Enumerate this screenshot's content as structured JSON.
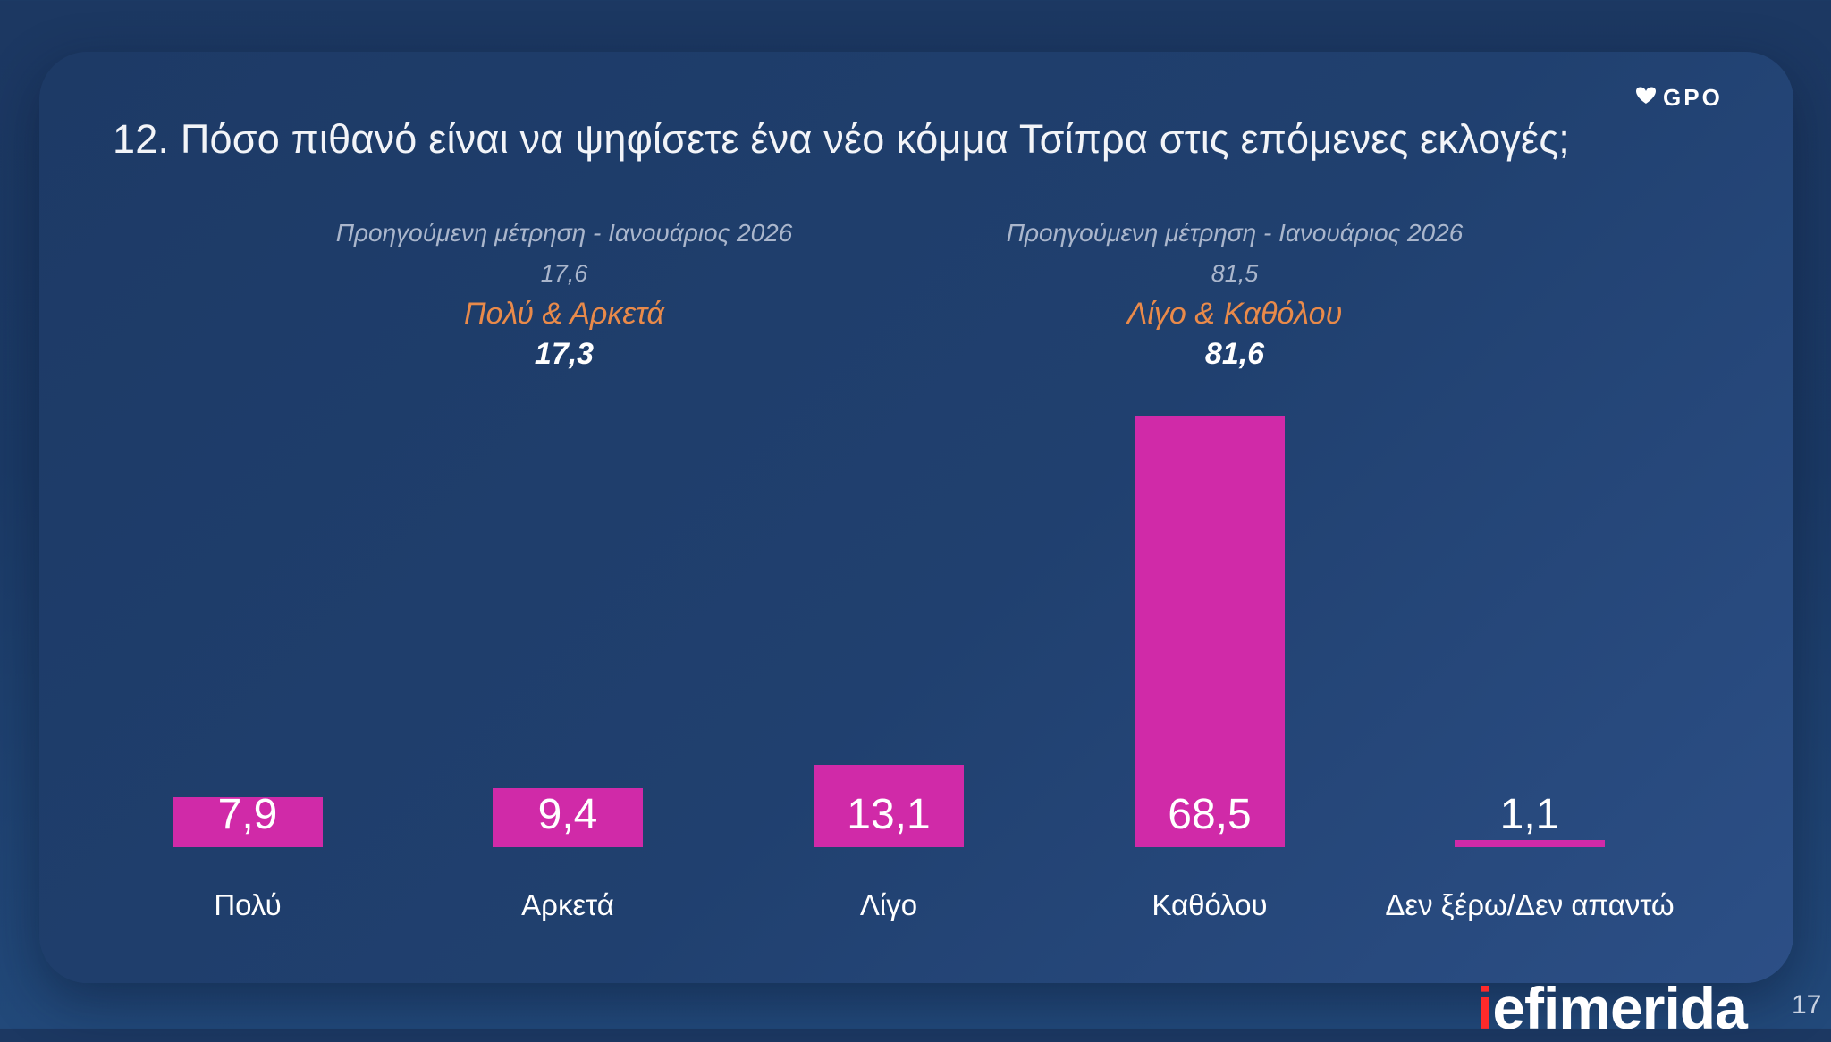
{
  "title": "12. Πόσο πιθανό είναι να ψηφίσετε ένα νέο κόμμα Τσίπρα στις επόμενες εκλογές;",
  "logo_text": "GPO",
  "brand": {
    "prefix": "i",
    "rest": "efimerida"
  },
  "page_number": "17",
  "groups": [
    {
      "previous_label": "Προηγούμενη μέτρηση - Ιανουάριος 2026",
      "previous_value": "17,6",
      "label": "Πολύ & Αρκετά",
      "value": "17,3"
    },
    {
      "previous_label": "Προηγούμενη μέτρηση - Ιανουάριος 2026",
      "previous_value": "81,5",
      "label": "Λίγο & Καθόλου",
      "value": "81,6"
    }
  ],
  "chart_data": {
    "type": "bar",
    "title": "12. Πόσο πιθανό είναι να ψηφίσετε ένα νέο κόμμα Τσίπρα στις επόμενες εκλογές;",
    "categories": [
      "Πολύ",
      "Αρκετά",
      "Λίγο",
      "Καθόλου",
      "Δεν ξέρω/Δεν απαντώ"
    ],
    "values": [
      7.9,
      9.4,
      13.1,
      68.5,
      1.1
    ],
    "value_labels": [
      "7,9",
      "9,4",
      "13,1",
      "68,5",
      "1,1"
    ],
    "xlabel": "",
    "ylabel": "",
    "ylim": [
      0,
      68.5
    ],
    "grid": false,
    "bar_color": "#d02aa8"
  },
  "colors": {
    "group_label": "#e98a4a",
    "brand_accent": "#ff2a2a"
  }
}
